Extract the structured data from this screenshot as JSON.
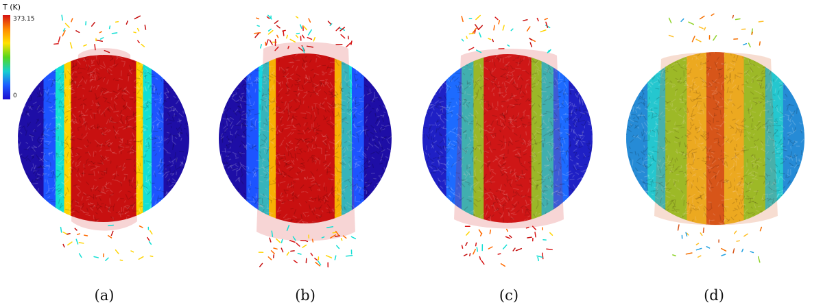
{
  "legend": {
    "title": "T (K)",
    "max_label": "373.15",
    "min_label": "0",
    "gradient": [
      "#d61313",
      "#ff8a00",
      "#ffe100",
      "#54d71d",
      "#14d0d0",
      "#1d5cff",
      "#1a0bd0"
    ]
  },
  "panels": [
    {
      "label": "(a)",
      "layers": [
        {
          "start": 0.0,
          "end": 0.15,
          "color": "#1e0ea6"
        },
        {
          "start": 0.15,
          "end": 0.22,
          "color": "#1d54ff"
        },
        {
          "start": 0.22,
          "end": 0.27,
          "color": "#13dfd4"
        },
        {
          "start": 0.27,
          "end": 0.31,
          "color": "#ffd400"
        },
        {
          "start": 0.31,
          "end": 0.69,
          "color": "#c60f0f"
        },
        {
          "start": 0.69,
          "end": 0.73,
          "color": "#ffd400"
        },
        {
          "start": 0.73,
          "end": 0.78,
          "color": "#13dfd4"
        },
        {
          "start": 0.78,
          "end": 0.85,
          "color": "#1d54ff"
        },
        {
          "start": 0.85,
          "end": 1.0,
          "color": "#1e0ea6"
        }
      ]
    },
    {
      "label": "(b)",
      "layers": [
        {
          "start": 0.0,
          "end": 0.16,
          "color": "#1e0ea6"
        },
        {
          "start": 0.16,
          "end": 0.23,
          "color": "#1d54ff"
        },
        {
          "start": 0.23,
          "end": 0.29,
          "color": "#14d7e0"
        },
        {
          "start": 0.29,
          "end": 0.33,
          "color": "#ffd400"
        },
        {
          "start": 0.33,
          "end": 0.67,
          "color": "#c70f0f"
        },
        {
          "start": 0.67,
          "end": 0.71,
          "color": "#ffd400"
        },
        {
          "start": 0.71,
          "end": 0.77,
          "color": "#14d7e0"
        },
        {
          "start": 0.77,
          "end": 0.84,
          "color": "#1d54ff"
        },
        {
          "start": 0.84,
          "end": 1.0,
          "color": "#1e0ea6"
        }
      ]
    },
    {
      "label": "(c)",
      "layers": [
        {
          "start": 0.0,
          "end": 0.14,
          "color": "#1f20c5"
        },
        {
          "start": 0.14,
          "end": 0.23,
          "color": "#1d6bff"
        },
        {
          "start": 0.23,
          "end": 0.3,
          "color": "#21d1d1"
        },
        {
          "start": 0.3,
          "end": 0.36,
          "color": "#8fdb2d"
        },
        {
          "start": 0.36,
          "end": 0.64,
          "color": "#cf1717"
        },
        {
          "start": 0.64,
          "end": 0.7,
          "color": "#8fdb2d"
        },
        {
          "start": 0.7,
          "end": 0.77,
          "color": "#21d1d1"
        },
        {
          "start": 0.77,
          "end": 0.86,
          "color": "#1d6bff"
        },
        {
          "start": 0.86,
          "end": 1.0,
          "color": "#1f20c5"
        }
      ]
    },
    {
      "label": "(d)",
      "layers": [
        {
          "start": 0.0,
          "end": 0.12,
          "color": "#268bd6"
        },
        {
          "start": 0.12,
          "end": 0.22,
          "color": "#25c7cf"
        },
        {
          "start": 0.22,
          "end": 0.34,
          "color": "#8fd32b"
        },
        {
          "start": 0.34,
          "end": 0.45,
          "color": "#f2be22"
        },
        {
          "start": 0.45,
          "end": 0.55,
          "color": "#d8551a"
        },
        {
          "start": 0.55,
          "end": 0.66,
          "color": "#f2be22"
        },
        {
          "start": 0.66,
          "end": 0.78,
          "color": "#8fd32b"
        },
        {
          "start": 0.78,
          "end": 0.88,
          "color": "#25c7cf"
        },
        {
          "start": 0.88,
          "end": 1.0,
          "color": "#268bd6"
        }
      ]
    }
  ]
}
